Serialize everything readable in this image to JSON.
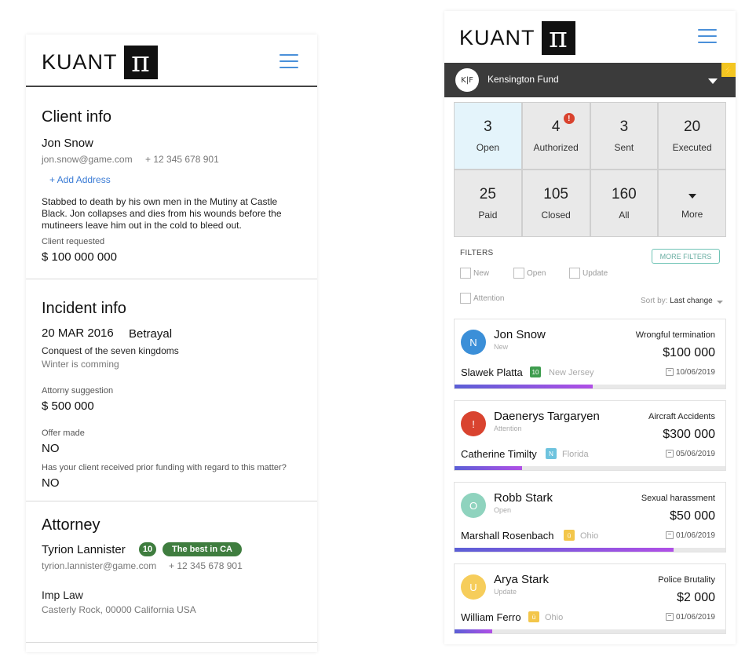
{
  "left": {
    "brand": {
      "text": "KUANT",
      "symbol": "π"
    },
    "client": {
      "title": "Client info",
      "name": "Jon Snow",
      "email": "jon.snow@game.com",
      "phone": "+ 12 345 678 901",
      "add_address": "+ Add Address",
      "description_lines": [
        "Stabbed to death by his own men in the Mutiny at Castle",
        "Black. Jon collapses and dies from his wounds before the",
        "mutineers leave him out in the cold to bleed out."
      ],
      "requested_label": "Client requested",
      "requested_value": "$ 100 000 000"
    },
    "incident": {
      "title": "Incident info",
      "date": "20 MAR 2016",
      "type": "Betrayal",
      "subject": "Conquest of the seven kingdoms",
      "subtitle": "Winter is comming",
      "attorney_suggestion_label": "Attorny suggestion",
      "attorney_suggestion_value": "$ 500 000",
      "offer_label": "Offer made",
      "offer_value": "NO",
      "prior_funding_label": "Has your client received prior funding with regard to this matter?",
      "prior_funding_value": "NO"
    },
    "attorney": {
      "title": "Attorney",
      "name": "Tyrion Lannister",
      "score": "10",
      "tag": "The best in CA",
      "email": "tyrion.lannister@game.com",
      "phone": "+ 12 345 678 901",
      "firm": "Imp Law",
      "address": "Casterly Rock, 00000 California USA"
    }
  },
  "right": {
    "brand": {
      "text": "KUANT",
      "symbol": "π"
    },
    "fund": {
      "name": "Kensington Fund",
      "logo": "K|F",
      "bolt": "⚡"
    },
    "stats": [
      {
        "value": "3",
        "label": "Open"
      },
      {
        "value": "4",
        "label": "Authorized",
        "alert": "!"
      },
      {
        "value": "3",
        "label": "Sent"
      },
      {
        "value": "20",
        "label": "Executed"
      },
      {
        "value": "25",
        "label": "Paid"
      },
      {
        "value": "105",
        "label": "Closed"
      },
      {
        "value": "160",
        "label": "All"
      },
      {
        "value": "",
        "label": "More"
      }
    ],
    "filters": {
      "label": "FILTERS",
      "more_button": "MORE FILTERS",
      "options": [
        "New",
        "Open",
        "Update",
        "Attention"
      ],
      "sort_label": "Sort by:",
      "sort_value": "Last change"
    },
    "cases": [
      {
        "initial": "N",
        "avatar_color": "#3b8fd8",
        "name": "Jon Snow",
        "status": "New",
        "type": "Wrongful termination",
        "amount": "$100 000",
        "attorney": "Slawek Platta",
        "badge": "10",
        "badge_color": "#3f9d4f",
        "state": "New Jersey",
        "date": "10/06/2019",
        "progress": 0.51
      },
      {
        "initial": "!",
        "avatar_color": "#d9432f",
        "name": "Daenerys Targaryen",
        "status": "Attention",
        "type": "Aircraft Accidents",
        "amount": "$300 000",
        "attorney": "Catherine Timilty",
        "badge": "N",
        "badge_color": "#6ec3de",
        "state": "Florida",
        "date": "05/06/2019",
        "progress": 0.25
      },
      {
        "initial": "O",
        "avatar_color": "#8fd3be",
        "name": "Robb Stark",
        "status": "Open",
        "type": "Sexual harassment",
        "amount": "$50 000",
        "attorney": "Marshall Rosenbach",
        "badge": "ü",
        "badge_color": "#f3c64a",
        "state": "Ohio",
        "date": "01/06/2019",
        "progress": 0.81
      },
      {
        "initial": "U",
        "avatar_color": "#f6cd5b",
        "name": "Arya Stark",
        "status": "Update",
        "type": "Police Brutality",
        "amount": "$2 000",
        "attorney": "William Ferro",
        "badge": "ü",
        "badge_color": "#f3c64a",
        "state": "Ohio",
        "date": "01/06/2019",
        "progress": 0.14
      }
    ]
  }
}
